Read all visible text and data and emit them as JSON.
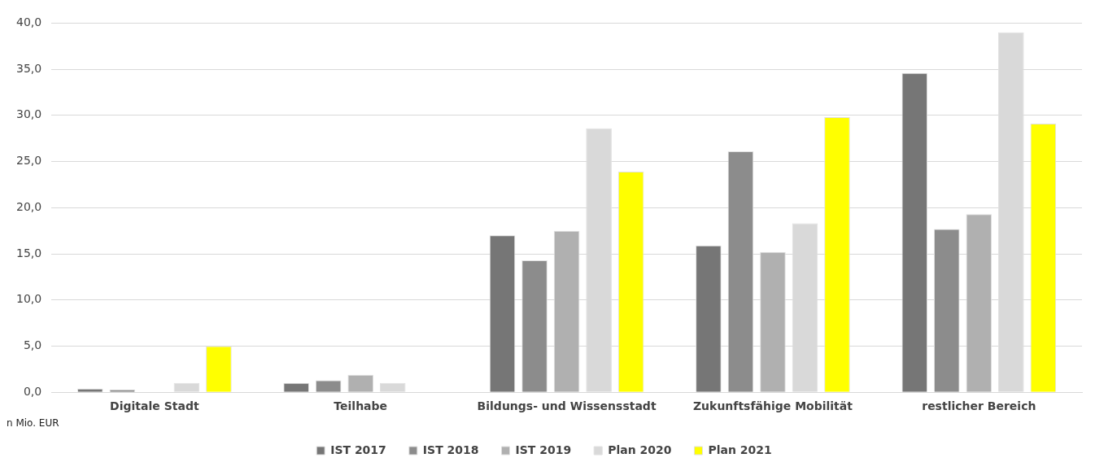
{
  "chart_data": {
    "type": "bar",
    "categories": [
      "Digitale Stadt",
      "Teilhabe",
      "Bildungs- und Wissensstadt",
      "Zukunftsfähige Mobilität",
      "restlicher Bereich"
    ],
    "series": [
      {
        "name": "IST 2017",
        "color": "#767676",
        "values": [
          0.4,
          1.0,
          17.0,
          15.9,
          34.6
        ]
      },
      {
        "name": "IST 2018",
        "color": "#8c8c8c",
        "values": [
          0.3,
          1.3,
          14.3,
          26.1,
          17.7
        ]
      },
      {
        "name": "IST 2019",
        "color": "#b0b0b0",
        "values": [
          null,
          1.9,
          17.5,
          15.2,
          19.3
        ]
      },
      {
        "name": "Plan 2020",
        "color": "#d9d9d9",
        "values": [
          1.0,
          1.0,
          28.6,
          18.3,
          39.0
        ]
      },
      {
        "name": "Plan 2021",
        "color": "#ffff00",
        "values": [
          5.0,
          null,
          23.9,
          29.8,
          29.1
        ]
      }
    ],
    "ylim": [
      0,
      40
    ],
    "yticks": [
      {
        "value": 0,
        "label": "0,0"
      },
      {
        "value": 5,
        "label": "5,0"
      },
      {
        "value": 10,
        "label": "10,0"
      },
      {
        "value": 15,
        "label": "15,0"
      },
      {
        "value": 20,
        "label": "20,0"
      },
      {
        "value": 25,
        "label": "25,0"
      },
      {
        "value": 30,
        "label": "30,0"
      },
      {
        "value": 35,
        "label": "35,0"
      },
      {
        "value": 40,
        "label": "40,0"
      }
    ],
    "grid": "y",
    "legend": "bottom",
    "annotations": [
      "n Mio. EUR"
    ]
  }
}
